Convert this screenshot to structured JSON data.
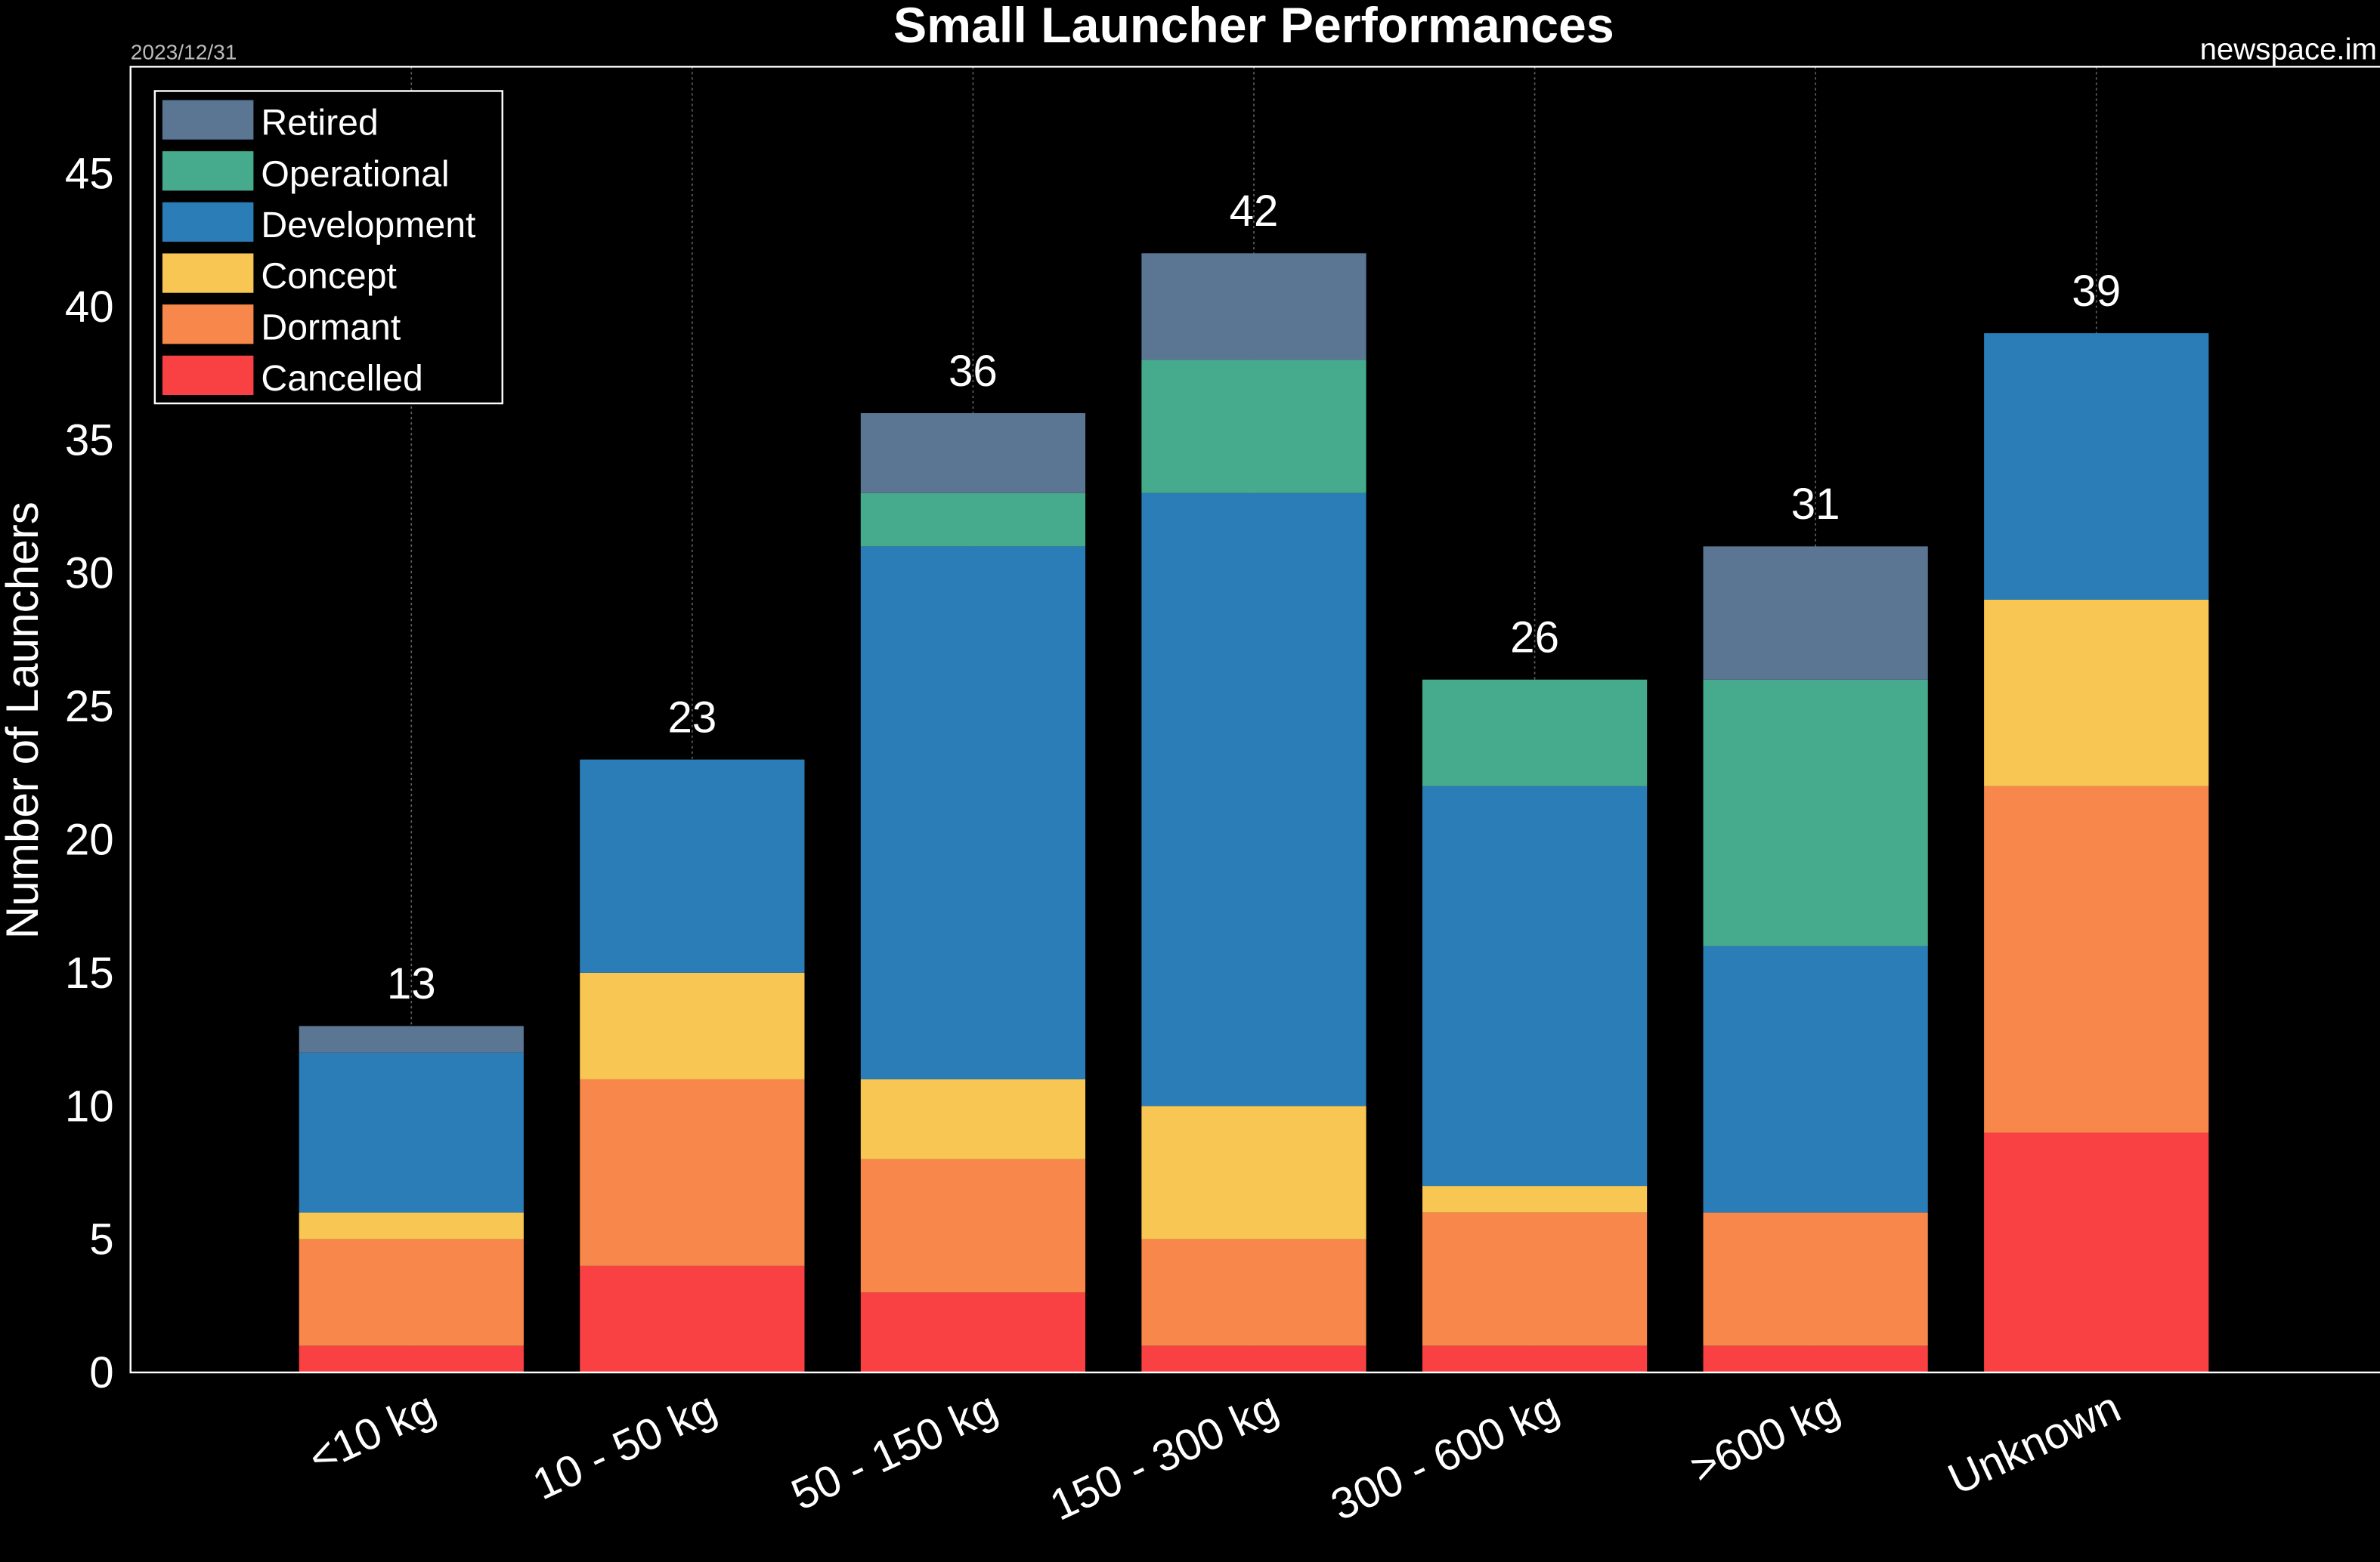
{
  "chart_data": {
    "type": "bar",
    "stacked": true,
    "title": "Small Launcher Performances",
    "date_note": "2023/12/31",
    "source_note": "newspace.im",
    "xlabel": "",
    "ylabel": "Number of Launchers",
    "ylim": [
      0,
      49
    ],
    "yticks": [
      0,
      5,
      10,
      15,
      20,
      25,
      30,
      35,
      40,
      45
    ],
    "grid": "vertical dotted",
    "legend_placement": "top-left",
    "categories": [
      "<10 kg",
      "10 - 50 kg",
      "50 - 150 kg",
      "150 - 300 kg",
      "300 - 600 kg",
      ">600 kg",
      "Unknown"
    ],
    "totals": [
      13,
      23,
      36,
      42,
      26,
      31,
      39
    ],
    "series": [
      {
        "name": "Cancelled",
        "color": "#f94144",
        "values": [
          1,
          4,
          3,
          1,
          1,
          1,
          9
        ]
      },
      {
        "name": "Dormant",
        "color": "#f7874b",
        "values": [
          4,
          7,
          5,
          4,
          5,
          5,
          13
        ]
      },
      {
        "name": "Concept",
        "color": "#f8c652",
        "values": [
          1,
          4,
          3,
          5,
          1,
          0,
          7
        ]
      },
      {
        "name": "Development",
        "color": "#2a7db6",
        "values": [
          6,
          8,
          20,
          23,
          15,
          10,
          10
        ]
      },
      {
        "name": "Operational",
        "color": "#45ab8c",
        "values": [
          0,
          0,
          2,
          5,
          4,
          10,
          0
        ]
      },
      {
        "name": "Retired",
        "color": "#5a7692",
        "values": [
          1,
          0,
          3,
          4,
          0,
          5,
          0
        ]
      }
    ],
    "legend_order": [
      "Retired",
      "Operational",
      "Development",
      "Concept",
      "Dormant",
      "Cancelled"
    ]
  }
}
